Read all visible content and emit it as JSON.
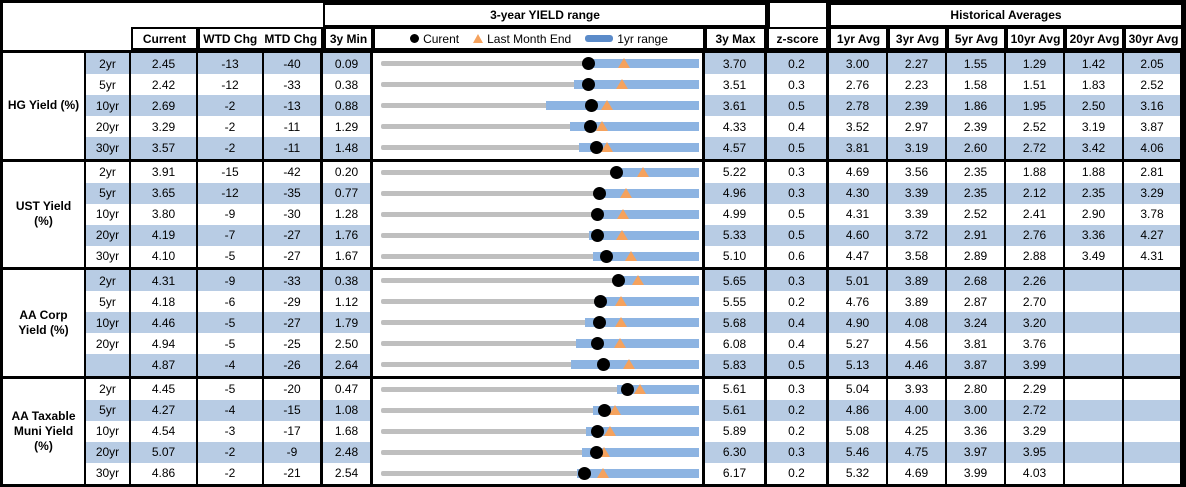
{
  "header": {
    "range_title": "3-year YIELD range",
    "hist_title": "Historical Averages",
    "col_current": "Current",
    "col_wtd": "WTD Chg",
    "col_mtd": "MTD Chg",
    "col_min": "3y Min",
    "col_max": "3y Max",
    "col_z": "z-score",
    "avg_cols": [
      "1yr Avg",
      "3yr Avg",
      "5yr Avg",
      "10yr Avg",
      "20yr Avg",
      "30yr Avg"
    ],
    "legend": {
      "current_label": "Curent",
      "lme_label": "Last Month End",
      "range_label": "1yr range"
    }
  },
  "colors": {
    "stripe_blue": "#b8cce4",
    "bar_blue": "#8db4e2",
    "legend_dash_blue": "#5b8bc9",
    "track_gray": "#bfbfbf",
    "marker_black": "#000000",
    "triangle_orange": "#f5a25d",
    "border_black": "#000000"
  },
  "chart_data": {
    "type": "table",
    "description": "Yield table with inline 3-year range charts: gray track spans 3y Min to 3y Max, blue bar is the 1yr range (upper end at 3y Max), black dot is Current, orange triangle is Last Month End (Current - MTD Chg bps). yr1_min_est values are estimated from bar pixel positions.",
    "numeric_columns": [
      "Current",
      "WTD Chg (bps)",
      "MTD Chg (bps)",
      "3y Min",
      "3y Max",
      "z-score",
      "1yr Avg",
      "3yr Avg",
      "5yr Avg",
      "10yr Avg",
      "20yr Avg",
      "30yr Avg"
    ],
    "sections": [
      {
        "label": "HG Yield (%)",
        "rows": [
          {
            "tenor": "2yr",
            "current": "2.45",
            "wtd": "-13",
            "mtd": "-40",
            "min3y": "0.09",
            "max3y": "3.70",
            "z": "0.2",
            "avgs": [
              "3.00",
              "2.27",
              "1.55",
              "1.29",
              "1.42",
              "2.05"
            ],
            "yr1_min_est": 2.45
          },
          {
            "tenor": "5yr",
            "current": "2.42",
            "wtd": "-12",
            "mtd": "-33",
            "min3y": "0.38",
            "max3y": "3.51",
            "z": "0.3",
            "avgs": [
              "2.76",
              "2.23",
              "1.58",
              "1.51",
              "1.83",
              "2.52"
            ],
            "yr1_min_est": 2.28
          },
          {
            "tenor": "10yr",
            "current": "2.69",
            "wtd": "-2",
            "mtd": "-13",
            "min3y": "0.88",
            "max3y": "3.61",
            "z": "0.5",
            "avgs": [
              "2.78",
              "2.39",
              "1.86",
              "1.95",
              "2.50",
              "3.16"
            ],
            "yr1_min_est": 2.3
          },
          {
            "tenor": "20yr",
            "current": "3.29",
            "wtd": "-2",
            "mtd": "-11",
            "min3y": "1.29",
            "max3y": "4.33",
            "z": "0.4",
            "avgs": [
              "3.52",
              "2.97",
              "2.39",
              "2.52",
              "3.19",
              "3.87"
            ],
            "yr1_min_est": 3.1
          },
          {
            "tenor": "30yr",
            "current": "3.57",
            "wtd": "-2",
            "mtd": "-11",
            "min3y": "1.48",
            "max3y": "4.57",
            "z": "0.5",
            "avgs": [
              "3.81",
              "3.19",
              "2.60",
              "2.72",
              "3.42",
              "4.06"
            ],
            "yr1_min_est": 3.4
          }
        ]
      },
      {
        "label": "UST Yield (%)",
        "rows": [
          {
            "tenor": "2yr",
            "current": "3.91",
            "wtd": "-15",
            "mtd": "-42",
            "min3y": "0.20",
            "max3y": "5.22",
            "z": "0.3",
            "avgs": [
              "4.69",
              "3.56",
              "2.35",
              "1.88",
              "1.88",
              "2.81"
            ],
            "yr1_min_est": 3.91
          },
          {
            "tenor": "5yr",
            "current": "3.65",
            "wtd": "-12",
            "mtd": "-35",
            "min3y": "0.77",
            "max3y": "4.96",
            "z": "0.3",
            "avgs": [
              "4.30",
              "3.39",
              "2.35",
              "2.12",
              "2.35",
              "3.29"
            ],
            "yr1_min_est": 3.6
          },
          {
            "tenor": "10yr",
            "current": "3.80",
            "wtd": "-9",
            "mtd": "-30",
            "min3y": "1.28",
            "max3y": "4.99",
            "z": "0.5",
            "avgs": [
              "4.31",
              "3.39",
              "2.52",
              "2.41",
              "2.90",
              "3.78"
            ],
            "yr1_min_est": 3.76
          },
          {
            "tenor": "20yr",
            "current": "4.19",
            "wtd": "-7",
            "mtd": "-27",
            "min3y": "1.76",
            "max3y": "5.33",
            "z": "0.5",
            "avgs": [
              "4.60",
              "3.72",
              "2.91",
              "2.76",
              "3.36",
              "4.27"
            ],
            "yr1_min_est": 4.1
          },
          {
            "tenor": "30yr",
            "current": "4.10",
            "wtd": "-5",
            "mtd": "-27",
            "min3y": "1.67",
            "max3y": "5.10",
            "z": "0.6",
            "avgs": [
              "4.47",
              "3.58",
              "2.89",
              "2.88",
              "3.49",
              "4.31"
            ],
            "yr1_min_est": 3.96
          }
        ]
      },
      {
        "label": "AA Corp Yield (%)",
        "rows": [
          {
            "tenor": "2yr",
            "current": "4.31",
            "wtd": "-9",
            "mtd": "-33",
            "min3y": "0.38",
            "max3y": "5.65",
            "z": "0.3",
            "avgs": [
              "5.01",
              "3.89",
              "2.68",
              "2.26",
              "",
              ""
            ],
            "yr1_min_est": 4.31
          },
          {
            "tenor": "5yr",
            "current": "4.18",
            "wtd": "-6",
            "mtd": "-29",
            "min3y": "1.12",
            "max3y": "5.55",
            "z": "0.2",
            "avgs": [
              "4.76",
              "3.89",
              "2.87",
              "2.70",
              "",
              ""
            ],
            "yr1_min_est": 4.1
          },
          {
            "tenor": "10yr",
            "current": "4.46",
            "wtd": "-5",
            "mtd": "-27",
            "min3y": "1.79",
            "max3y": "5.68",
            "z": "0.4",
            "avgs": [
              "4.90",
              "4.08",
              "3.24",
              "3.20",
              "",
              ""
            ],
            "yr1_min_est": 4.28
          },
          {
            "tenor": "20yr",
            "current": "4.94",
            "wtd": "-5",
            "mtd": "-25",
            "min3y": "2.50",
            "max3y": "6.08",
            "z": "0.4",
            "avgs": [
              "5.27",
              "4.56",
              "3.81",
              "3.76",
              "",
              ""
            ],
            "yr1_min_est": 4.7
          },
          {
            "tenor": "",
            "current": "4.87",
            "wtd": "-4",
            "mtd": "-26",
            "min3y": "2.64",
            "max3y": "5.83",
            "z": "0.5",
            "avgs": [
              "5.13",
              "4.46",
              "3.87",
              "3.99",
              "",
              ""
            ],
            "yr1_min_est": 4.55
          }
        ]
      },
      {
        "label": "AA Taxable Muni Yield (%)",
        "rows": [
          {
            "tenor": "2yr",
            "current": "4.45",
            "wtd": "-5",
            "mtd": "-20",
            "min3y": "0.47",
            "max3y": "5.61",
            "z": "0.3",
            "avgs": [
              "5.04",
              "3.93",
              "2.80",
              "2.29",
              "",
              ""
            ],
            "yr1_min_est": 4.28
          },
          {
            "tenor": "5yr",
            "current": "4.27",
            "wtd": "-4",
            "mtd": "-15",
            "min3y": "1.08",
            "max3y": "5.61",
            "z": "0.2",
            "avgs": [
              "4.86",
              "4.00",
              "3.00",
              "2.72",
              "",
              ""
            ],
            "yr1_min_est": 4.1
          },
          {
            "tenor": "10yr",
            "current": "4.54",
            "wtd": "-3",
            "mtd": "-17",
            "min3y": "1.68",
            "max3y": "5.89",
            "z": "0.2",
            "avgs": [
              "5.08",
              "4.25",
              "3.36",
              "3.29",
              "",
              ""
            ],
            "yr1_min_est": 4.4
          },
          {
            "tenor": "20yr",
            "current": "5.07",
            "wtd": "-2",
            "mtd": "-9",
            "min3y": "2.48",
            "max3y": "6.30",
            "z": "0.3",
            "avgs": [
              "5.46",
              "4.75",
              "3.97",
              "3.95",
              "",
              ""
            ],
            "yr1_min_est": 4.9
          },
          {
            "tenor": "30yr",
            "current": "4.86",
            "wtd": "-2",
            "mtd": "-21",
            "min3y": "2.54",
            "max3y": "6.17",
            "z": "0.2",
            "avgs": [
              "5.32",
              "4.69",
              "3.99",
              "4.03",
              "",
              ""
            ],
            "yr1_min_est": 4.78
          }
        ]
      }
    ]
  }
}
